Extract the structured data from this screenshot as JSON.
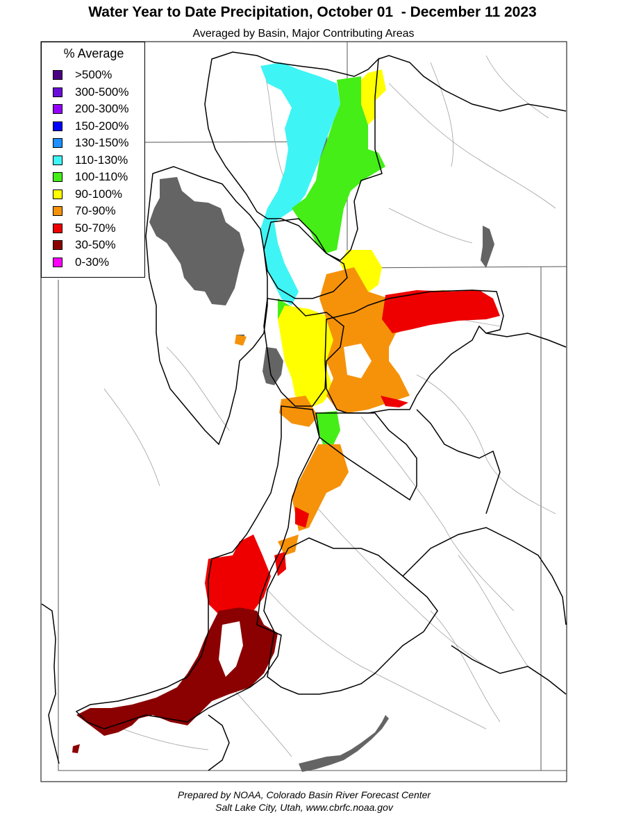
{
  "title": "Water Year to Date Precipitation, October 01  - December 11 2023",
  "subtitle": "Averaged by Basin, Major Contributing Areas",
  "legend": {
    "title": "% Average",
    "items": [
      {
        "label": ">500%",
        "color": "#4b0082"
      },
      {
        "label": "300-500%",
        "color": "#6a0dd8"
      },
      {
        "label": "200-300%",
        "color": "#9400ff"
      },
      {
        "label": "150-200%",
        "color": "#0000ff"
      },
      {
        "label": "130-150%",
        "color": "#1e90ff"
      },
      {
        "label": "110-130%",
        "color": "#3ff4f4"
      },
      {
        "label": "100-110%",
        "color": "#44ee16"
      },
      {
        "label": "90-100%",
        "color": "#ffff00"
      },
      {
        "label": "70-90%",
        "color": "#f5920a"
      },
      {
        "label": "50-70%",
        "color": "#ee0000"
      },
      {
        "label": "30-50%",
        "color": "#8b0000"
      },
      {
        "label": "0-30%",
        "color": "#ff00ff"
      }
    ]
  },
  "map_colors": {
    "water": "#646464",
    "state_border": "#555555",
    "basin_outline": "#000000",
    "stream": "#a0a0a0"
  },
  "footer": {
    "line1": "Prepared by NOAA, Colorado Basin River Forecast Center",
    "line2": "Salt Lake City, Utah, www.cbrfc.noaa.gov"
  }
}
